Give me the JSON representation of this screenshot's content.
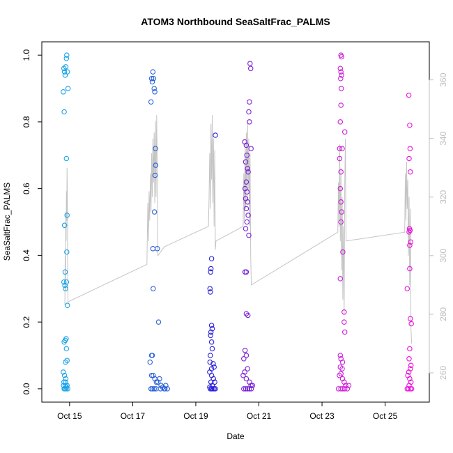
{
  "chart_data": {
    "type": "scatter",
    "title": "ATOM3 Northbound SeaSaltFrac_PALMS",
    "xlabel": "Date",
    "ylabel": "SeaSaltFrac_PALMS",
    "x_ticks": [
      "Oct 15",
      "Oct 17",
      "Oct 19",
      "Oct 21",
      "Oct 23",
      "Oct 25"
    ],
    "x_tick_days": [
      15,
      17,
      19,
      21,
      23,
      25
    ],
    "xlim": [
      14.12,
      26.4
    ],
    "ylim": [
      -0.04,
      1.04
    ],
    "y_ticks": [
      "0.0",
      "0.2",
      "0.4",
      "0.6",
      "0.8",
      "1.0"
    ],
    "y_tick_values": [
      0.0,
      0.2,
      0.4,
      0.6,
      0.8,
      1.0
    ],
    "secondary_axis": {
      "ylim": [
        250,
        373
      ],
      "ticks": [
        "260",
        "280",
        "300",
        "320",
        "340",
        "360"
      ],
      "tick_values": [
        260,
        280,
        300,
        320,
        340,
        360
      ],
      "color": "#bdbdbd"
    },
    "series": [
      {
        "color": "#1aa3e8",
        "points": [
          [
            14.82,
            0.96
          ],
          [
            14.84,
            0.95
          ],
          [
            14.86,
            0.94
          ],
          [
            14.88,
            0.965
          ],
          [
            14.9,
            0.99
          ],
          [
            14.91,
            1.0
          ],
          [
            14.93,
            0.95
          ],
          [
            14.8,
            0.89
          ],
          [
            14.83,
            0.83
          ],
          [
            14.95,
            0.9
          ],
          [
            14.9,
            0.69
          ],
          [
            14.92,
            0.52
          ],
          [
            14.84,
            0.49
          ],
          [
            14.91,
            0.41
          ],
          [
            14.86,
            0.35
          ],
          [
            14.82,
            0.32
          ],
          [
            14.87,
            0.3
          ],
          [
            14.85,
            0.31
          ],
          [
            14.9,
            0.32
          ],
          [
            14.93,
            0.25
          ],
          [
            14.83,
            0.14
          ],
          [
            14.86,
            0.145
          ],
          [
            14.89,
            0.15
          ],
          [
            14.9,
            0.12
          ],
          [
            14.92,
            0.085
          ],
          [
            14.87,
            0.08
          ],
          [
            14.8,
            0.05
          ],
          [
            14.84,
            0.04
          ],
          [
            14.88,
            0.03
          ],
          [
            14.82,
            0.02
          ],
          [
            14.86,
            0.01
          ],
          [
            14.9,
            0.005
          ],
          [
            14.85,
            0.0
          ],
          [
            14.83,
            0.0
          ],
          [
            14.89,
            0.0
          ],
          [
            14.94,
            0.0
          ],
          [
            14.81,
            0.01
          ],
          [
            14.87,
            0.02
          ],
          [
            14.92,
            0.01
          ]
        ]
      },
      {
        "color": "#2a62d8",
        "points": [
          [
            17.6,
            0.93
          ],
          [
            17.62,
            0.92
          ],
          [
            17.64,
            0.95
          ],
          [
            17.66,
            0.93
          ],
          [
            17.68,
            0.9
          ],
          [
            17.7,
            0.89
          ],
          [
            17.58,
            0.86
          ],
          [
            17.72,
            0.72
          ],
          [
            17.73,
            0.67
          ],
          [
            17.71,
            0.64
          ],
          [
            17.69,
            0.53
          ],
          [
            17.64,
            0.42
          ],
          [
            17.78,
            0.42
          ],
          [
            17.65,
            0.3
          ],
          [
            17.82,
            0.2
          ],
          [
            17.62,
            0.1
          ],
          [
            17.6,
            0.1
          ],
          [
            17.55,
            0.08
          ],
          [
            17.6,
            0.04
          ],
          [
            17.65,
            0.04
          ],
          [
            17.7,
            0.03
          ],
          [
            17.75,
            0.02
          ],
          [
            17.8,
            0.02
          ],
          [
            17.85,
            0.03
          ],
          [
            17.9,
            0.01
          ],
          [
            17.95,
            0.005
          ],
          [
            18.0,
            0.0
          ],
          [
            18.05,
            0.01
          ],
          [
            18.1,
            0.0
          ],
          [
            17.58,
            0.0
          ],
          [
            17.62,
            0.0
          ],
          [
            17.68,
            0.0
          ],
          [
            17.74,
            0.0
          ],
          [
            17.88,
            0.0
          ],
          [
            18.02,
            0.0
          ]
        ]
      },
      {
        "color": "#2c22d8",
        "points": [
          [
            19.62,
            0.76
          ],
          [
            19.5,
            0.39
          ],
          [
            19.48,
            0.36
          ],
          [
            19.47,
            0.35
          ],
          [
            19.45,
            0.3
          ],
          [
            19.46,
            0.29
          ],
          [
            19.5,
            0.19
          ],
          [
            19.52,
            0.18
          ],
          [
            19.48,
            0.17
          ],
          [
            19.47,
            0.16
          ],
          [
            19.5,
            0.14
          ],
          [
            19.52,
            0.12
          ],
          [
            19.46,
            0.1
          ],
          [
            19.45,
            0.08
          ],
          [
            19.5,
            0.06
          ],
          [
            19.55,
            0.075
          ],
          [
            19.58,
            0.065
          ],
          [
            19.44,
            0.05
          ],
          [
            19.5,
            0.04
          ],
          [
            19.56,
            0.03
          ],
          [
            19.6,
            0.02
          ],
          [
            19.48,
            0.02
          ],
          [
            19.52,
            0.01
          ],
          [
            19.44,
            0.005
          ],
          [
            19.5,
            0.0
          ],
          [
            19.58,
            0.0
          ],
          [
            19.62,
            0.0
          ],
          [
            19.46,
            0.0
          ],
          [
            19.54,
            0.0
          ]
        ]
      },
      {
        "color": "#7a20d8",
        "points": [
          [
            20.72,
            0.975
          ],
          [
            20.74,
            0.96
          ],
          [
            20.7,
            0.86
          ],
          [
            20.68,
            0.83
          ],
          [
            20.7,
            0.8
          ],
          [
            20.55,
            0.74
          ],
          [
            20.6,
            0.73
          ],
          [
            20.75,
            0.72
          ],
          [
            20.62,
            0.7
          ],
          [
            20.58,
            0.68
          ],
          [
            20.64,
            0.66
          ],
          [
            20.66,
            0.65
          ],
          [
            20.6,
            0.62
          ],
          [
            20.56,
            0.6
          ],
          [
            20.62,
            0.59
          ],
          [
            20.58,
            0.57
          ],
          [
            20.64,
            0.56
          ],
          [
            20.6,
            0.54
          ],
          [
            20.66,
            0.52
          ],
          [
            20.62,
            0.5
          ],
          [
            20.58,
            0.48
          ],
          [
            20.68,
            0.46
          ],
          [
            20.56,
            0.35
          ],
          [
            20.6,
            0.35
          ],
          [
            20.6,
            0.225
          ],
          [
            20.65,
            0.22
          ],
          [
            20.56,
            0.115
          ],
          [
            20.6,
            0.1
          ],
          [
            20.52,
            0.09
          ],
          [
            20.64,
            0.06
          ],
          [
            20.55,
            0.05
          ],
          [
            20.5,
            0.04
          ],
          [
            20.6,
            0.03
          ],
          [
            20.7,
            0.02
          ],
          [
            20.75,
            0.01
          ],
          [
            20.52,
            0.0
          ],
          [
            20.58,
            0.0
          ],
          [
            20.64,
            0.0
          ],
          [
            20.7,
            0.0
          ],
          [
            20.76,
            0.0
          ],
          [
            20.8,
            0.01
          ]
        ]
      },
      {
        "color": "#cc1ed8",
        "points": [
          [
            23.6,
            1.0
          ],
          [
            23.62,
            0.995
          ],
          [
            23.58,
            0.96
          ],
          [
            23.6,
            0.95
          ],
          [
            23.62,
            0.94
          ],
          [
            23.59,
            0.93
          ],
          [
            23.61,
            0.9
          ],
          [
            23.6,
            0.85
          ],
          [
            23.58,
            0.8
          ],
          [
            23.72,
            0.77
          ],
          [
            23.56,
            0.72
          ],
          [
            23.64,
            0.72
          ],
          [
            23.56,
            0.69
          ],
          [
            23.6,
            0.65
          ],
          [
            23.58,
            0.6
          ],
          [
            23.6,
            0.56
          ],
          [
            23.62,
            0.53
          ],
          [
            23.6,
            0.5
          ],
          [
            23.66,
            0.41
          ],
          [
            23.58,
            0.33
          ],
          [
            23.7,
            0.23
          ],
          [
            23.7,
            0.2
          ],
          [
            23.72,
            0.17
          ],
          [
            23.58,
            0.1
          ],
          [
            23.6,
            0.09
          ],
          [
            23.65,
            0.08
          ],
          [
            23.58,
            0.065
          ],
          [
            23.64,
            0.06
          ],
          [
            23.6,
            0.045
          ],
          [
            23.55,
            0.04
          ],
          [
            23.65,
            0.03
          ],
          [
            23.7,
            0.02
          ],
          [
            23.75,
            0.01
          ],
          [
            23.8,
            0.0
          ],
          [
            23.6,
            0.0
          ],
          [
            23.66,
            0.0
          ],
          [
            23.72,
            0.0
          ],
          [
            23.52,
            0.0
          ],
          [
            23.85,
            0.01
          ]
        ]
      },
      {
        "color": "#ee10dd",
        "points": [
          [
            25.75,
            0.88
          ],
          [
            25.78,
            0.79
          ],
          [
            25.79,
            0.72
          ],
          [
            25.76,
            0.69
          ],
          [
            25.8,
            0.65
          ],
          [
            25.77,
            0.48
          ],
          [
            25.79,
            0.475
          ],
          [
            25.76,
            0.47
          ],
          [
            25.81,
            0.44
          ],
          [
            25.78,
            0.43
          ],
          [
            25.78,
            0.36
          ],
          [
            25.7,
            0.3
          ],
          [
            25.8,
            0.21
          ],
          [
            25.83,
            0.195
          ],
          [
            25.78,
            0.12
          ],
          [
            25.76,
            0.09
          ],
          [
            25.82,
            0.07
          ],
          [
            25.8,
            0.06
          ],
          [
            25.75,
            0.05
          ],
          [
            25.72,
            0.04
          ],
          [
            25.78,
            0.03
          ],
          [
            25.82,
            0.02
          ],
          [
            25.76,
            0.01
          ],
          [
            25.8,
            0.0
          ],
          [
            25.74,
            0.0
          ],
          [
            25.7,
            0.0
          ],
          [
            25.84,
            0.0
          ]
        ]
      }
    ],
    "secondary_trace": [
      [
        14.85,
        283
      ],
      [
        14.86,
        300
      ],
      [
        14.87,
        288
      ],
      [
        14.88,
        315
      ],
      [
        14.89,
        305
      ],
      [
        14.9,
        322
      ],
      [
        14.91,
        312
      ],
      [
        14.92,
        330
      ],
      [
        14.93,
        318
      ],
      [
        14.94,
        298
      ],
      [
        14.95,
        284
      ],
      [
        15.0,
        284.5
      ],
      [
        17.45,
        297
      ],
      [
        17.48,
        318
      ],
      [
        17.5,
        305
      ],
      [
        17.52,
        322
      ],
      [
        17.54,
        312
      ],
      [
        17.56,
        328
      ],
      [
        17.58,
        315
      ],
      [
        17.6,
        335
      ],
      [
        17.62,
        320
      ],
      [
        17.64,
        340
      ],
      [
        17.66,
        325
      ],
      [
        17.68,
        342
      ],
      [
        17.7,
        318
      ],
      [
        17.72,
        346
      ],
      [
        17.74,
        320
      ],
      [
        17.76,
        348
      ],
      [
        17.78,
        328
      ],
      [
        17.8,
        300
      ],
      [
        18.0,
        303
      ],
      [
        19.4,
        310
      ],
      [
        19.42,
        320
      ],
      [
        19.44,
        335
      ],
      [
        19.46,
        316
      ],
      [
        19.48,
        345
      ],
      [
        19.5,
        326
      ],
      [
        19.52,
        348
      ],
      [
        19.54,
        318
      ],
      [
        19.56,
        340
      ],
      [
        19.58,
        310
      ],
      [
        19.6,
        336
      ],
      [
        19.62,
        302
      ],
      [
        19.64,
        305
      ],
      [
        20.5,
        310
      ],
      [
        20.52,
        328
      ],
      [
        20.54,
        312
      ],
      [
        20.56,
        338
      ],
      [
        20.58,
        316
      ],
      [
        20.6,
        342
      ],
      [
        20.62,
        318
      ],
      [
        20.64,
        346
      ],
      [
        20.66,
        322
      ],
      [
        20.68,
        340
      ],
      [
        20.7,
        310
      ],
      [
        20.72,
        335
      ],
      [
        20.74,
        300
      ],
      [
        20.76,
        290
      ],
      [
        23.5,
        308
      ],
      [
        23.52,
        325
      ],
      [
        23.54,
        310
      ],
      [
        23.56,
        338
      ],
      [
        23.58,
        305
      ],
      [
        23.6,
        330
      ],
      [
        23.62,
        295
      ],
      [
        23.64,
        320
      ],
      [
        23.66,
        285
      ],
      [
        23.68,
        310
      ],
      [
        23.7,
        280
      ],
      [
        23.72,
        325
      ],
      [
        23.74,
        340
      ],
      [
        23.76,
        305
      ],
      [
        25.62,
        308
      ],
      [
        25.64,
        328
      ],
      [
        25.66,
        312
      ],
      [
        25.68,
        332
      ],
      [
        25.7,
        316
      ],
      [
        25.72,
        326
      ],
      [
        25.74,
        300
      ],
      [
        25.76,
        320
      ],
      [
        25.78,
        290
      ],
      [
        25.8,
        316
      ],
      [
        25.82,
        275
      ],
      [
        25.84,
        270
      ]
    ]
  }
}
